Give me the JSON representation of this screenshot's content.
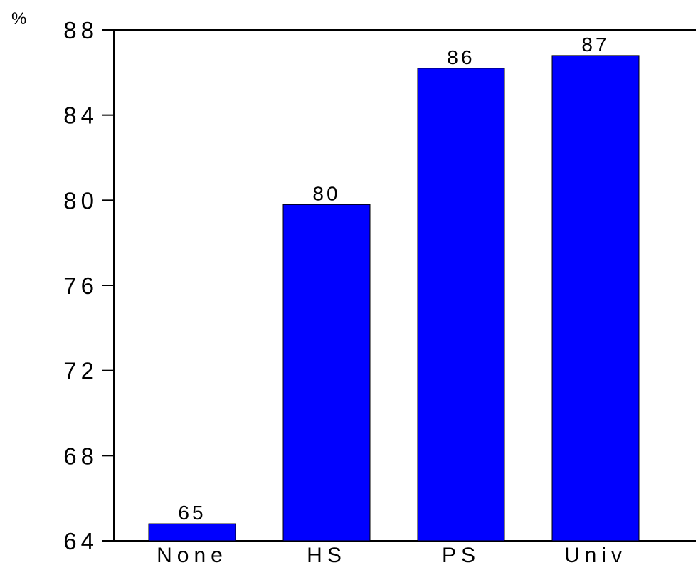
{
  "chart_data": {
    "type": "bar",
    "y_unit_label": "%",
    "categories": [
      "None",
      "HS",
      "PS",
      "Univ"
    ],
    "values": [
      64.8,
      79.8,
      86.2,
      86.8
    ],
    "data_labels": [
      "65",
      "80",
      "86",
      "87"
    ],
    "yticks": [
      "64",
      "68",
      "72",
      "76",
      "80",
      "84",
      "88"
    ],
    "ylim": [
      64,
      88
    ],
    "grid": false,
    "bar_color": "#0000ff",
    "bar_edge_color": "#000000"
  }
}
